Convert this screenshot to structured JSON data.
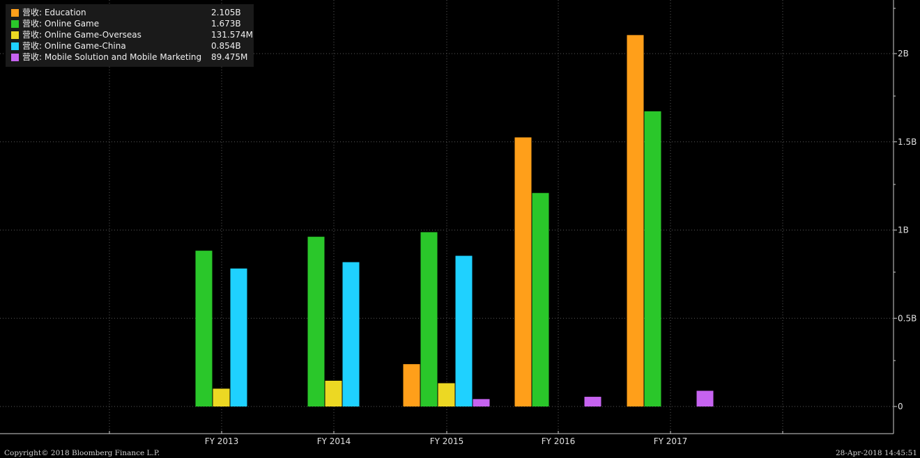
{
  "legend_prefix": "营收:",
  "footer": {
    "copyright": "Copyright© 2018 Bloomberg Finance L.P.",
    "timestamp": "28-Apr-2018 14:45:51"
  },
  "chart_data": {
    "type": "bar",
    "categories": [
      "FY 2013",
      "FY 2014",
      "FY 2015",
      "FY 2016",
      "FY 2017"
    ],
    "series": [
      {
        "name": "Education",
        "legend_value": "2.105B",
        "color": "#ff9f1a",
        "values": [
          null,
          null,
          0.24,
          1.525,
          2.105
        ]
      },
      {
        "name": "Online Game",
        "legend_value": "1.673B",
        "color": "#2ac72a",
        "values": [
          0.883,
          0.962,
          0.988,
          1.21,
          1.673
        ]
      },
      {
        "name": "Online Game-Overseas",
        "legend_value": "131.574M",
        "color": "#ecd823",
        "values": [
          0.101,
          0.146,
          0.132,
          null,
          null
        ]
      },
      {
        "name": "Online Game-China",
        "legend_value": "0.854B",
        "color": "#1fd1ff",
        "values": [
          0.782,
          0.818,
          0.854,
          null,
          null
        ]
      },
      {
        "name": "Mobile Solution and Mobile Marketing",
        "legend_value": "89.475M",
        "color": "#c663f0",
        "values": [
          null,
          null,
          0.042,
          0.055,
          0.089
        ]
      }
    ],
    "y_ticks": [
      {
        "value": 0,
        "label": "0"
      },
      {
        "value": 0.5,
        "label": "0.5B"
      },
      {
        "value": 1,
        "label": "1B"
      },
      {
        "value": 1.5,
        "label": "1.5B"
      },
      {
        "value": 2,
        "label": "2B"
      }
    ],
    "ylim": [
      -0.15,
      2.3
    ],
    "grid": true,
    "legend_position": "top-left",
    "axis_side": "right"
  }
}
